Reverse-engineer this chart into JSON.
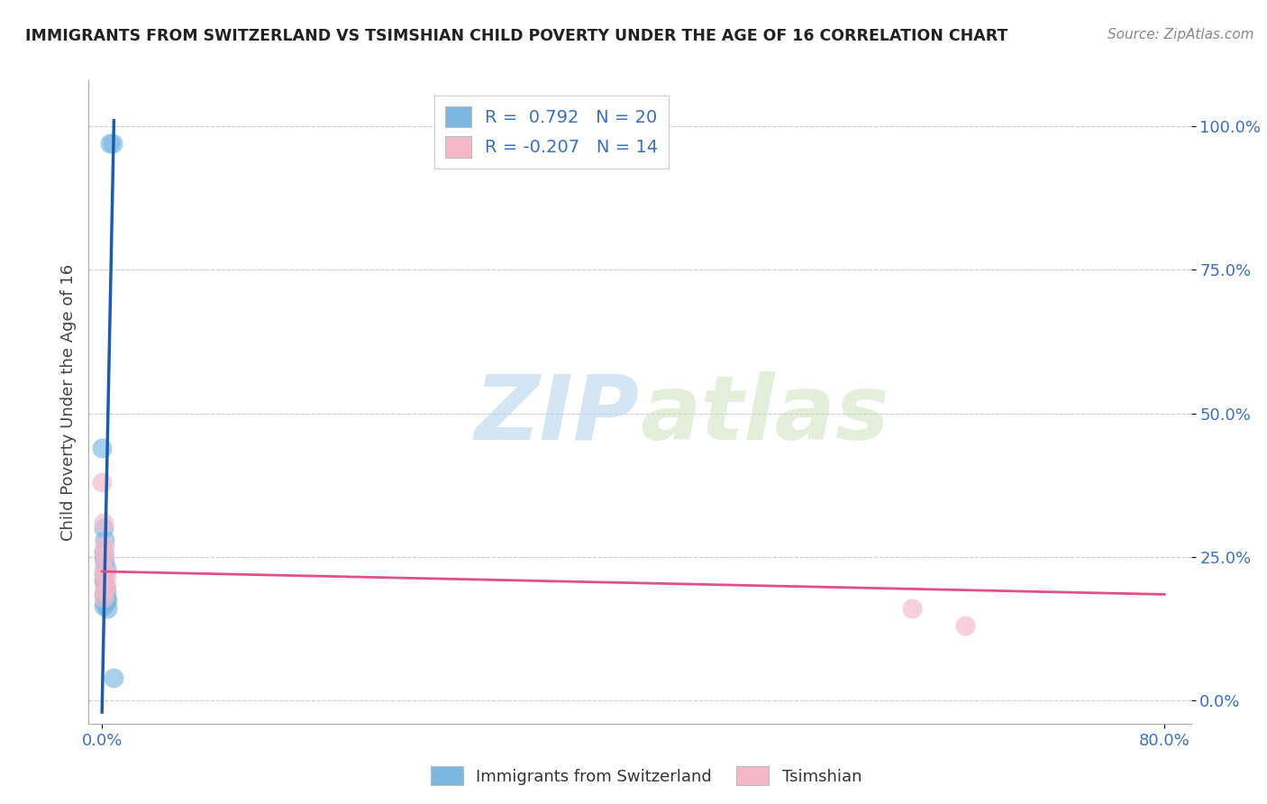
{
  "title": "IMMIGRANTS FROM SWITZERLAND VS TSIMSHIAN CHILD POVERTY UNDER THE AGE OF 16 CORRELATION CHART",
  "source": "Source: ZipAtlas.com",
  "ylabel": "Child Poverty Under the Age of 16",
  "ytick_labels": [
    "100.0%",
    "75.0%",
    "50.0%",
    "25.0%",
    "0.0%"
  ],
  "ytick_vals": [
    1.0,
    0.75,
    0.5,
    0.25,
    0.0
  ],
  "xtick_vals": [
    0.0,
    0.8
  ],
  "xtick_labels": [
    "0.0%",
    "80.0%"
  ],
  "xlim": [
    -0.01,
    0.82
  ],
  "ylim": [
    -0.04,
    1.08
  ],
  "legend1_r": "0.792",
  "legend1_n": "20",
  "legend2_r": "-0.207",
  "legend2_n": "14",
  "blue_color": "#7ab8e0",
  "pink_color": "#f5b8c8",
  "line_blue": "#1a5cb0",
  "line_pink": "#e0508a",
  "watermark_zip": "ZIP",
  "watermark_atlas": "atlas",
  "blue_scatter_x": [
    0.006,
    0.008,
    0.0,
    0.001,
    0.002,
    0.001,
    0.001,
    0.002,
    0.003,
    0.001,
    0.001,
    0.002,
    0.003,
    0.001,
    0.003,
    0.004,
    0.002,
    0.001,
    0.004,
    0.009
  ],
  "blue_scatter_y": [
    0.97,
    0.97,
    0.44,
    0.3,
    0.28,
    0.26,
    0.25,
    0.24,
    0.23,
    0.22,
    0.21,
    0.2,
    0.19,
    0.185,
    0.18,
    0.175,
    0.17,
    0.165,
    0.16,
    0.04
  ],
  "pink_scatter_x": [
    0.0,
    0.001,
    0.002,
    0.001,
    0.002,
    0.001,
    0.002,
    0.001,
    0.003,
    0.002,
    0.003,
    0.61,
    0.65,
    0.001
  ],
  "pink_scatter_y": [
    0.38,
    0.31,
    0.27,
    0.26,
    0.25,
    0.23,
    0.22,
    0.21,
    0.2,
    0.19,
    0.215,
    0.16,
    0.13,
    0.18
  ],
  "blue_line_x": [
    0.0,
    0.009
  ],
  "blue_line_y": [
    -0.02,
    1.01
  ],
  "pink_line_x": [
    0.0,
    0.8
  ],
  "pink_line_y": [
    0.225,
    0.185
  ],
  "grid_color": "#cccccc",
  "bg_color": "#ffffff"
}
